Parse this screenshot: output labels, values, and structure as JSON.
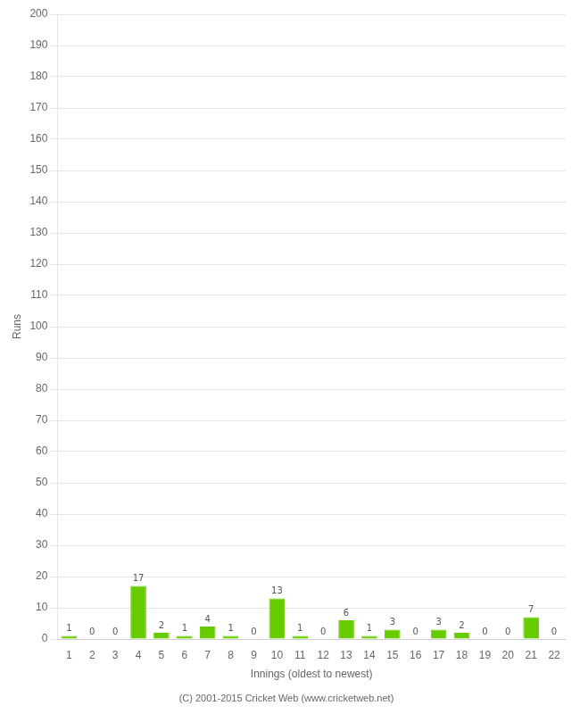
{
  "chart_data": {
    "type": "bar",
    "xlabel": "Innings (oldest to newest)",
    "ylabel": "Runs",
    "categories": [
      "1",
      "2",
      "3",
      "4",
      "5",
      "6",
      "7",
      "8",
      "9",
      "10",
      "11",
      "12",
      "13",
      "14",
      "15",
      "16",
      "17",
      "18",
      "19",
      "20",
      "21",
      "22"
    ],
    "values": [
      1,
      0,
      0,
      17,
      2,
      1,
      4,
      1,
      0,
      13,
      1,
      0,
      6,
      1,
      3,
      0,
      3,
      2,
      0,
      0,
      7,
      0
    ],
    "color": "#66cc00",
    "ylim": [
      0,
      200
    ],
    "yticks": [
      0,
      10,
      20,
      30,
      40,
      50,
      60,
      70,
      80,
      90,
      100,
      110,
      120,
      130,
      140,
      150,
      160,
      170,
      180,
      190,
      200
    ],
    "grid": true,
    "data_labels": true,
    "annotations": [
      "(C) 2001-2015 Cricket Web (www.cricketweb.net)"
    ]
  }
}
